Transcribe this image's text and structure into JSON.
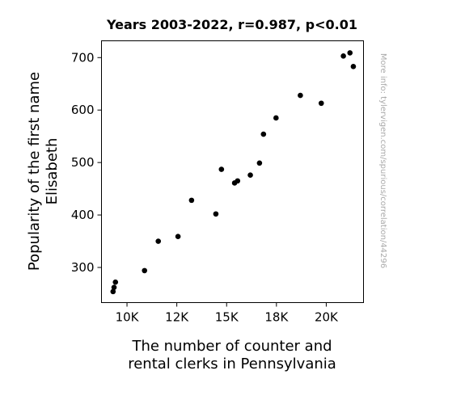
{
  "chart_data": {
    "type": "scatter",
    "title": "Years 2003-2022, r=0.987, p<0.01",
    "xlabel": [
      "The number of counter and",
      "rental clerks in Pennsylvania"
    ],
    "ylabel": [
      "Popularity of the first name",
      "Elisabeth"
    ],
    "watermark": "More info: tylervigen.com/spurious/correlation/44296",
    "xlim": [
      8720,
      21870
    ],
    "ylim": [
      233,
      732
    ],
    "xticks": [
      10000,
      12500,
      15000,
      17500,
      20000
    ],
    "xtick_labels": [
      "10K",
      "12K",
      "15K",
      "18K",
      "20K"
    ],
    "yticks": [
      300,
      400,
      500,
      600,
      700
    ],
    "ytick_labels": [
      "300",
      "400",
      "500",
      "600",
      "700"
    ],
    "grid": false,
    "point_color": "#000000",
    "points": [
      {
        "x": 9300,
        "y": 254
      },
      {
        "x": 9350,
        "y": 262
      },
      {
        "x": 9420,
        "y": 272
      },
      {
        "x": 10880,
        "y": 294
      },
      {
        "x": 11570,
        "y": 350
      },
      {
        "x": 12560,
        "y": 359
      },
      {
        "x": 13240,
        "y": 428
      },
      {
        "x": 14460,
        "y": 402
      },
      {
        "x": 14740,
        "y": 487
      },
      {
        "x": 15400,
        "y": 461
      },
      {
        "x": 15550,
        "y": 465
      },
      {
        "x": 16190,
        "y": 476
      },
      {
        "x": 16650,
        "y": 499
      },
      {
        "x": 16850,
        "y": 554
      },
      {
        "x": 17480,
        "y": 585
      },
      {
        "x": 18700,
        "y": 628
      },
      {
        "x": 19750,
        "y": 613
      },
      {
        "x": 20860,
        "y": 703
      },
      {
        "x": 21190,
        "y": 709
      },
      {
        "x": 21360,
        "y": 683
      }
    ]
  }
}
